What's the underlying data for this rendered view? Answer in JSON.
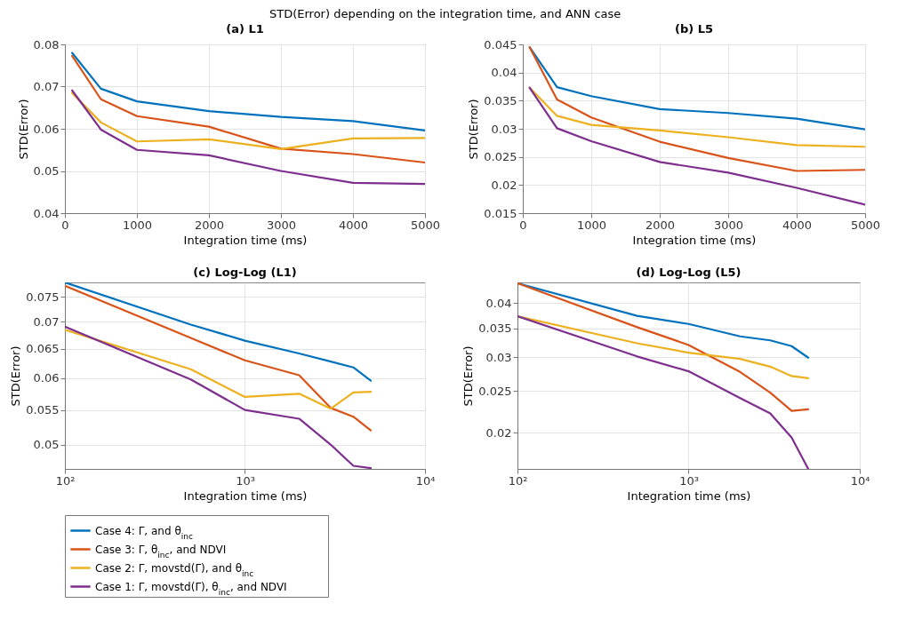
{
  "chart_data": [
    {
      "type": "line",
      "title": "(a) L1",
      "annotations": [
        "STD(Error) depending on the integration time, and ANN case"
      ],
      "xlabel": "Integration time (ms)",
      "ylabel": "STD(Error)",
      "x": [
        100,
        500,
        1000,
        2000,
        3000,
        4000,
        5000
      ],
      "xlim": [
        0,
        5000
      ],
      "xticks": [
        0,
        1000,
        2000,
        3000,
        4000,
        5000
      ],
      "ylim": [
        0.04,
        0.08
      ],
      "yticks": [
        0.04,
        0.05,
        0.06,
        0.07,
        0.08
      ],
      "grid": true,
      "line_style": "solid",
      "series": [
        {
          "color": "#0072bd",
          "values": [
            0.078,
            0.0695,
            0.0665,
            0.0642,
            0.0628,
            0.0618,
            0.0596
          ]
        },
        {
          "color": "#d95319",
          "values": [
            0.0773,
            0.067,
            0.063,
            0.0605,
            0.0553,
            0.054,
            0.052
          ]
        },
        {
          "color": "#edb120",
          "values": [
            0.0685,
            0.0615,
            0.057,
            0.0575,
            0.0552,
            0.0577,
            0.0578
          ]
        },
        {
          "color": "#7e2f8e",
          "values": [
            0.0691,
            0.0598,
            0.055,
            0.0537,
            0.05,
            0.0472,
            0.0469
          ]
        }
      ]
    },
    {
      "type": "line",
      "title": "(b) L5",
      "xlabel": "Integration time (ms)",
      "ylabel": "STD(Error)",
      "x": [
        100,
        500,
        1000,
        2000,
        3000,
        4000,
        5000
      ],
      "xlim": [
        0,
        5000
      ],
      "xticks": [
        0,
        1000,
        2000,
        3000,
        4000,
        5000
      ],
      "ylim": [
        0.015,
        0.045
      ],
      "yticks": [
        0.015,
        0.02,
        0.025,
        0.03,
        0.035,
        0.04,
        0.045
      ],
      "grid": true,
      "line_style": "solid",
      "series": [
        {
          "color": "#0072bd",
          "values": [
            0.0445,
            0.0374,
            0.0358,
            0.0335,
            0.0328,
            0.0318,
            0.0299
          ]
        },
        {
          "color": "#d95319",
          "values": [
            0.0445,
            0.0352,
            0.032,
            0.0277,
            0.0248,
            0.0225,
            0.0227
          ]
        },
        {
          "color": "#edb120",
          "values": [
            0.0373,
            0.0323,
            0.0307,
            0.0297,
            0.0285,
            0.0271,
            0.0268
          ]
        },
        {
          "color": "#7e2f8e",
          "values": [
            0.0373,
            0.0301,
            0.0278,
            0.0241,
            0.0222,
            0.0195,
            0.0165
          ]
        }
      ]
    },
    {
      "type": "line",
      "title": "(c) Log-Log (L1)",
      "xlabel": "Integration time (ms)",
      "ylabel": "STD(Error)",
      "log": "xy",
      "x": [
        100,
        500,
        1000,
        2000,
        3000,
        4000,
        5000
      ],
      "xlim": [
        100,
        10000
      ],
      "xticks": [
        {
          "value": 100,
          "label": "10²"
        },
        {
          "value": 1000,
          "label": "10³"
        },
        {
          "value": 10000,
          "label": "10⁴"
        }
      ],
      "ylim": [
        0.0468,
        0.078
      ],
      "yticks": [
        0.05,
        0.055,
        0.06,
        0.065,
        0.07,
        0.075
      ],
      "grid": true,
      "line_style": "solid",
      "legend": "bottom",
      "series": [
        {
          "name": "Case 4: Γ, and θ$_{inc}$",
          "color": "#0072bd",
          "values": [
            0.078,
            0.0695,
            0.0665,
            0.0642,
            0.0628,
            0.0618,
            0.0596
          ]
        },
        {
          "name": "Case 3: Γ, θ$_{inc}$, and NDVI",
          "color": "#d95319",
          "values": [
            0.0773,
            0.067,
            0.063,
            0.0605,
            0.0553,
            0.054,
            0.052
          ]
        },
        {
          "name": "Case 2: Γ, movstd(Γ), and θ$_{inc}$",
          "color": "#edb120",
          "values": [
            0.0685,
            0.0615,
            0.057,
            0.0575,
            0.0552,
            0.0577,
            0.0578
          ]
        },
        {
          "name": "Case 1: Γ, movstd(Γ), θ$_{inc}$, and NDVI",
          "color": "#7e2f8e",
          "values": [
            0.0691,
            0.0598,
            0.055,
            0.0537,
            0.05,
            0.0472,
            0.0469
          ]
        }
      ]
    },
    {
      "type": "line",
      "title": "(d) Log-Log (L5)",
      "xlabel": "Integration time (ms)",
      "ylabel": "STD(Error)",
      "log": "xy",
      "x": [
        100,
        500,
        1000,
        2000,
        3000,
        4000,
        5000
      ],
      "xlim": [
        100,
        10000
      ],
      "xticks": [
        {
          "value": 100,
          "label": "10²"
        },
        {
          "value": 1000,
          "label": "10³"
        },
        {
          "value": 10000,
          "label": "10⁴"
        }
      ],
      "ylim": [
        0.0165,
        0.0447
      ],
      "yticks": [
        0.02,
        0.025,
        0.03,
        0.035,
        0.04
      ],
      "grid": true,
      "line_style": "solid",
      "series": [
        {
          "color": "#0072bd",
          "values": [
            0.0445,
            0.0374,
            0.0358,
            0.0335,
            0.0328,
            0.0318,
            0.0299
          ]
        },
        {
          "color": "#d95319",
          "values": [
            0.0445,
            0.0352,
            0.032,
            0.0277,
            0.0248,
            0.0225,
            0.0227
          ]
        },
        {
          "color": "#edb120",
          "values": [
            0.0373,
            0.0323,
            0.0307,
            0.0297,
            0.0285,
            0.0271,
            0.0268
          ]
        },
        {
          "color": "#7e2f8e",
          "values": [
            0.0373,
            0.0301,
            0.0278,
            0.0241,
            0.0222,
            0.0195,
            0.0165
          ]
        }
      ]
    }
  ]
}
